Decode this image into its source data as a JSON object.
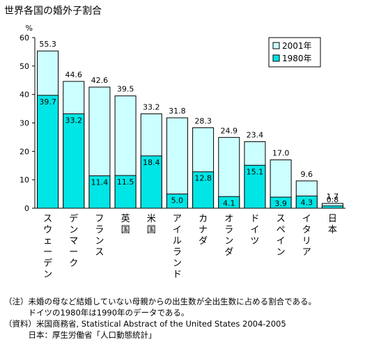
{
  "title": "世界各国の婚外子割合",
  "chart_data": {
    "type": "bar",
    "title": "世界各国の婚外子割合",
    "ylabel": "%",
    "ylim": [
      0,
      60
    ],
    "yticks": [
      "0",
      "10",
      "20",
      "30",
      "40",
      "50",
      "60"
    ],
    "legend_position": "top-right",
    "grid": false,
    "categories": [
      "スウェーデン",
      "デンマーク",
      "フランス",
      "英国",
      "米国",
      "アイルランド",
      "カナダ",
      "オランダ",
      "ドイツ",
      "スペイン",
      "イタリア",
      "日本"
    ],
    "series": [
      {
        "name": "2001年",
        "values": [
          55.3,
          44.6,
          42.6,
          39.5,
          33.2,
          31.8,
          28.3,
          24.9,
          23.4,
          17.0,
          9.6,
          1.7
        ],
        "labels": [
          "55.3",
          "44.6",
          "42.6",
          "39.5",
          "33.2",
          "31.8",
          "28.3",
          "24.9",
          "23.4",
          "17.0",
          "9.6",
          "1.7"
        ]
      },
      {
        "name": "1980年",
        "values": [
          39.7,
          33.2,
          11.4,
          11.5,
          18.4,
          5.0,
          12.8,
          4.1,
          15.1,
          3.9,
          4.3,
          0.8
        ],
        "labels": [
          "39.7",
          "33.2",
          "11.4",
          "11.5",
          "18.4",
          "5.0",
          "12.8",
          "4.1",
          "15.1",
          "3.9",
          "4.3",
          "0.8"
        ]
      }
    ]
  },
  "colors": {
    "series_2001": "#ccffff",
    "series_1980": "#00e5e5",
    "outline": "#000000"
  },
  "notes": [
    "（注）未婚の母など結婚していない母親からの出生数が全出生数に占める割合である。",
    "　　　ドイツの1980年は1990年のデータである。",
    "（資料）米国商務省, Statistical Abstract of the United States 2004-2005",
    "　　　日本：厚生労働省「人口動態統計」"
  ]
}
